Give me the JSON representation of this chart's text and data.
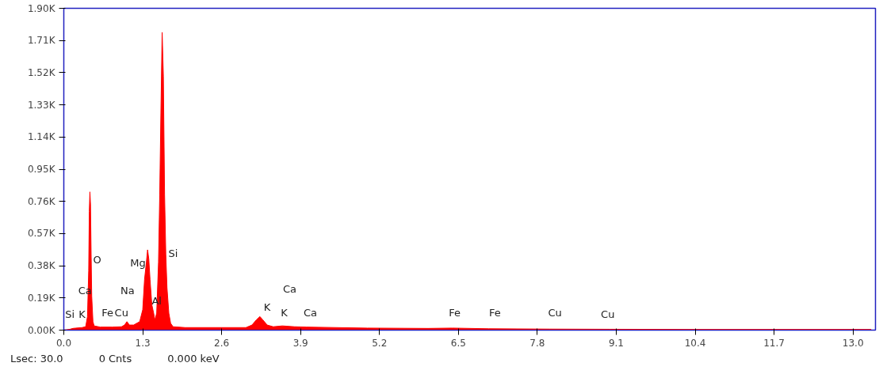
{
  "chart_data": {
    "type": "area",
    "x": [
      0.0,
      0.1,
      0.15,
      0.2,
      0.3,
      0.36,
      0.39,
      0.41,
      0.42,
      0.43,
      0.44,
      0.45,
      0.46,
      0.48,
      0.5,
      0.6,
      0.8,
      0.95,
      1.0,
      1.04,
      1.08,
      1.15,
      1.25,
      1.3,
      1.33,
      1.36,
      1.38,
      1.4,
      1.42,
      1.45,
      1.48,
      1.5,
      1.53,
      1.56,
      1.58,
      1.6,
      1.62,
      1.64,
      1.66,
      1.68,
      1.7,
      1.73,
      1.76,
      1.8,
      2.0,
      2.5,
      3.0,
      3.1,
      3.17,
      3.23,
      3.28,
      3.35,
      3.45,
      3.6,
      3.8,
      4.0,
      5.0,
      6.0,
      6.4,
      7.0,
      8.0,
      9.0,
      10.4,
      11.7,
      13.0,
      13.3
    ],
    "series": [
      {
        "color": "#ff0000",
        "values": [
          0,
          0.005,
          0.01,
          0.012,
          0.015,
          0.02,
          0.08,
          0.35,
          0.7,
          0.816,
          0.74,
          0.45,
          0.2,
          0.05,
          0.025,
          0.018,
          0.018,
          0.02,
          0.03,
          0.05,
          0.03,
          0.03,
          0.05,
          0.12,
          0.3,
          0.4,
          0.474,
          0.42,
          0.3,
          0.15,
          0.1,
          0.06,
          0.1,
          0.4,
          0.8,
          1.3,
          1.758,
          1.5,
          0.8,
          0.45,
          0.25,
          0.1,
          0.04,
          0.02,
          0.015,
          0.015,
          0.015,
          0.03,
          0.06,
          0.08,
          0.06,
          0.03,
          0.02,
          0.025,
          0.02,
          0.018,
          0.012,
          0.01,
          0.012,
          0.008,
          0.006,
          0.005,
          0.004,
          0.004,
          0.004,
          0.004
        ]
      }
    ],
    "xlim": [
      0,
      13.37
    ],
    "xticks": [
      {
        "value": 0,
        "label": "0.0"
      },
      1.3,
      2.6,
      3.9,
      5.2,
      6.5,
      7.8,
      9.1,
      10.4,
      11.7,
      {
        "value": 13,
        "label": "13.0"
      }
    ],
    "ylim": [
      0,
      1.9
    ],
    "yticks": [
      {
        "value": 0,
        "label": "0.00K"
      },
      {
        "value": 0.19,
        "label": "0.19K"
      },
      {
        "value": 0.38,
        "label": "0.38K"
      },
      {
        "value": 0.57,
        "label": "0.57K"
      },
      {
        "value": 0.76,
        "label": "0.76K"
      },
      {
        "value": 0.95,
        "label": "0.95K"
      },
      {
        "value": 1.14,
        "label": "1.14K"
      },
      {
        "value": 1.33,
        "label": "1.33K"
      },
      {
        "value": 1.52,
        "label": "1.52K"
      },
      {
        "value": 1.71,
        "label": "1.71K"
      },
      {
        "value": 1.9,
        "label": "1.90K"
      }
    ],
    "grid": false,
    "annotations": [
      "Si",
      "K",
      "Ca",
      "O",
      "Fe",
      "Cu",
      "Na",
      "Mg",
      "Al",
      "Si",
      "K",
      "Ca",
      "K",
      "Ca",
      "Fe",
      "Fe",
      "Cu",
      "Cu",
      "Lsec: 30.0",
      "0 Cnts",
      "0.000 keV"
    ]
  }
}
